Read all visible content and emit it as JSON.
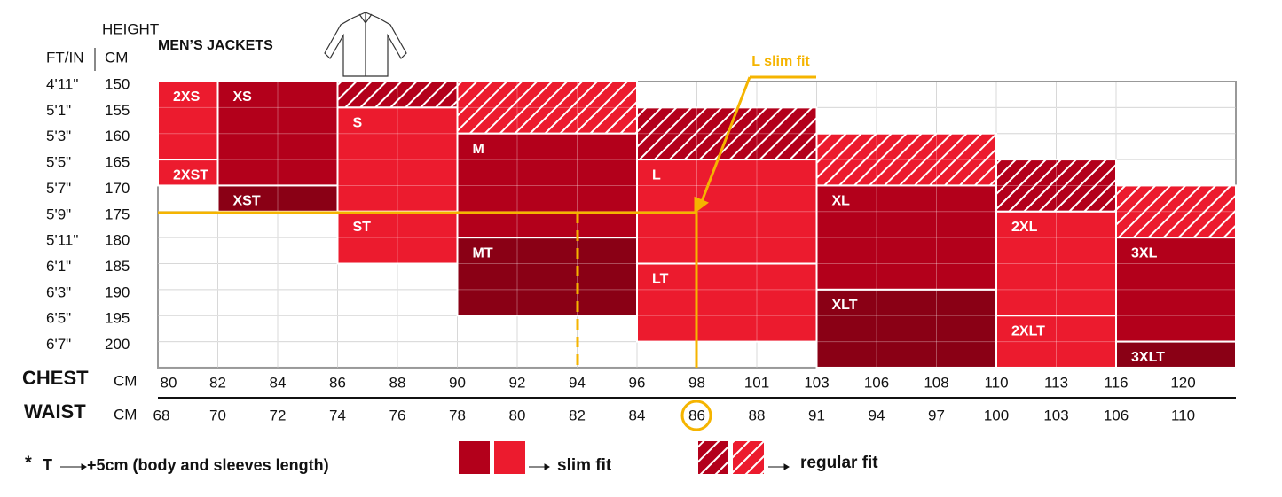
{
  "header": {
    "height_title": "HEIGHT",
    "ft_in": "FT/IN",
    "cm": "CM",
    "product": "MEN’S JACKETS"
  },
  "heights": {
    "ft_in": [
      "4'11\"",
      "5'1\"",
      "5'3\"",
      "5'5\"",
      "5'7\"",
      "5'9\"",
      "5'11\"",
      "6'1\"",
      "6'3\"",
      "6'5\"",
      "6'7\""
    ],
    "cm": [
      150,
      155,
      160,
      165,
      170,
      175,
      180,
      185,
      190,
      195,
      200
    ]
  },
  "chest": {
    "label": "CHEST",
    "unit": "CM",
    "values": [
      80,
      82,
      84,
      86,
      88,
      90,
      92,
      94,
      96,
      98,
      101,
      103,
      106,
      108,
      110,
      113,
      116,
      120
    ]
  },
  "waist": {
    "label": "WAIST",
    "unit": "CM",
    "values": [
      68,
      70,
      72,
      74,
      76,
      78,
      80,
      82,
      84,
      86,
      88,
      91,
      94,
      97,
      100,
      103,
      106,
      110
    ]
  },
  "sizes": [
    "2XS",
    "2XST",
    "XS",
    "XST",
    "S",
    "ST",
    "M",
    "MT",
    "L",
    "LT",
    "XL",
    "XLT",
    "2XL",
    "2XLT",
    "3XL",
    "3XLT"
  ],
  "annotation": "L slim fit",
  "legend": {
    "slim": "slim fit",
    "regular": "regular fit"
  },
  "footnote": {
    "star": "*",
    "t": "T",
    "text": "+5cm (body and sleeves length)"
  }
}
